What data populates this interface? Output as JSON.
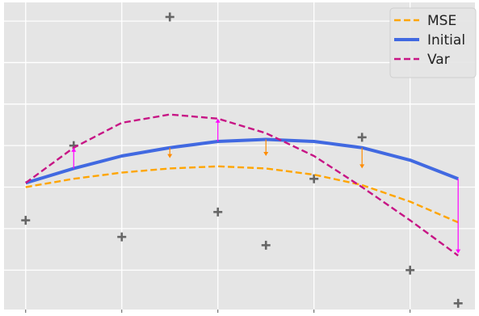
{
  "chart_data": {
    "type": "line",
    "title": "",
    "xlabel": "",
    "ylabel": "",
    "grid": true,
    "legend_position": "top-right",
    "x": [
      0,
      1,
      2,
      3,
      4,
      5,
      6,
      7,
      8,
      9
    ],
    "xlim": [
      -0.45,
      9.35
    ],
    "ylim": [
      -2.95,
      4.45
    ],
    "series": [
      {
        "name": "MSE",
        "style": "dashed",
        "color": "#ffa500",
        "values": [
          0.0,
          0.2,
          0.35,
          0.45,
          0.5,
          0.45,
          0.3,
          0.05,
          -0.35,
          -0.85
        ]
      },
      {
        "name": "Initial",
        "style": "solid",
        "color": "#4169e1",
        "values": [
          0.1,
          0.45,
          0.75,
          0.95,
          1.1,
          1.15,
          1.1,
          0.95,
          0.65,
          0.2
        ]
      },
      {
        "name": "Var",
        "style": "dashed",
        "color": "#c71585",
        "values": [
          0.1,
          0.95,
          1.55,
          1.75,
          1.65,
          1.3,
          0.75,
          0.0,
          -0.8,
          -1.65
        ]
      }
    ],
    "observations": [
      {
        "x": 0,
        "y": -0.8
      },
      {
        "x": 1,
        "y": 1.0
      },
      {
        "x": 2,
        "y": -1.2
      },
      {
        "x": 3,
        "y": 4.1
      },
      {
        "x": 4,
        "y": -0.6
      },
      {
        "x": 5,
        "y": -1.4
      },
      {
        "x": 6,
        "y": 0.2
      },
      {
        "x": 7,
        "y": 1.2
      },
      {
        "x": 8,
        "y": -2.0
      },
      {
        "x": 9,
        "y": -2.8
      }
    ],
    "shift_arrows": [
      {
        "x": 1,
        "from": 0.45,
        "to": 0.95,
        "color": "#ff00ff"
      },
      {
        "x": 3,
        "from": 0.95,
        "to": 0.7,
        "color": "#ff8c00"
      },
      {
        "x": 4,
        "from": 1.1,
        "to": 1.65,
        "color": "#ff00ff"
      },
      {
        "x": 5,
        "from": 1.15,
        "to": 0.75,
        "color": "#ff8c00"
      },
      {
        "x": 7,
        "from": 0.95,
        "to": 0.45,
        "color": "#ff8c00"
      },
      {
        "x": 9,
        "from": 0.2,
        "to": -1.6,
        "color": "#ff00ff"
      }
    ],
    "colors": {
      "background": "#e5e5e5",
      "grid": "#ffffff",
      "marker": "#666666"
    }
  }
}
